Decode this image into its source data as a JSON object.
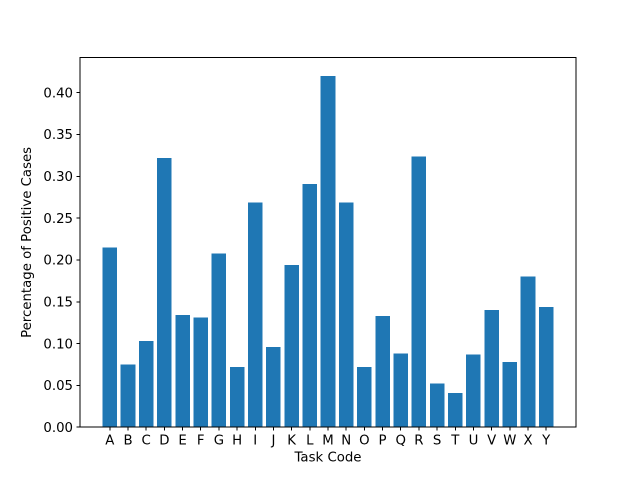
{
  "window": {
    "background": "#ffffff"
  },
  "chart_data": {
    "type": "bar",
    "title": "",
    "xlabel": "Task Code",
    "ylabel": "Percentage of Positive Cases",
    "categories": [
      "A",
      "B",
      "C",
      "D",
      "E",
      "F",
      "G",
      "H",
      "I",
      "J",
      "K",
      "L",
      "M",
      "N",
      "O",
      "P",
      "Q",
      "R",
      "S",
      "T",
      "U",
      "V",
      "W",
      "X",
      "Y"
    ],
    "values": [
      0.215,
      0.075,
      0.103,
      0.322,
      0.134,
      0.131,
      0.208,
      0.072,
      0.269,
      0.096,
      0.194,
      0.291,
      0.42,
      0.269,
      0.072,
      0.133,
      0.088,
      0.324,
      0.052,
      0.041,
      0.087,
      0.14,
      0.078,
      0.18,
      0.144
    ],
    "bar_color": "#1f77b4",
    "axis_color": "#000000",
    "text_color": "#000000",
    "ylim": [
      0,
      0.442
    ],
    "yticks": [
      0.0,
      0.05,
      0.1,
      0.15,
      0.2,
      0.25,
      0.3,
      0.35,
      0.4
    ],
    "ytick_labels": [
      "0.00",
      "0.05",
      "0.10",
      "0.15",
      "0.20",
      "0.25",
      "0.30",
      "0.35",
      "0.40"
    ],
    "bar_rel_width": 0.8,
    "grid": false,
    "legend_position": "none"
  }
}
